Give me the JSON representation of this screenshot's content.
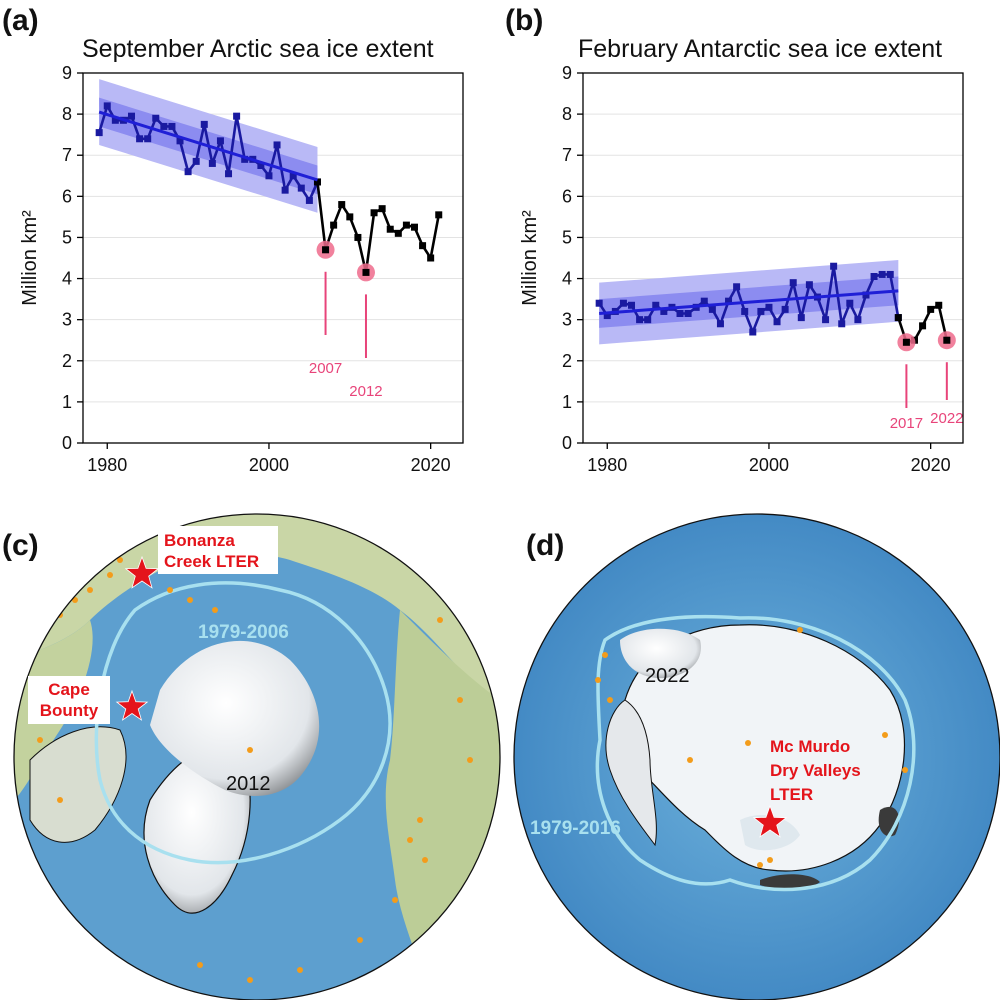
{
  "panels": {
    "a": {
      "letter": "(a)"
    },
    "b": {
      "letter": "(b)"
    },
    "c": {
      "letter": "(c)"
    },
    "d": {
      "letter": "(d)"
    }
  },
  "chart_data": [
    {
      "type": "line",
      "title": "September Arctic sea ice extent",
      "xlabel": "",
      "ylabel": "Million km²",
      "xlim": [
        1977,
        2024
      ],
      "ylim": [
        0,
        9
      ],
      "xticks": [
        1980,
        2000,
        2020
      ],
      "yticks": [
        0,
        1,
        2,
        3,
        4,
        5,
        6,
        7,
        8,
        9
      ],
      "grid": "horizontal",
      "series": [
        {
          "x": [
            1979,
            1980,
            1981,
            1982,
            1983,
            1984,
            1985,
            1986,
            1987,
            1988,
            1989,
            1990,
            1991,
            1992,
            1993,
            1994,
            1995,
            1996,
            1997,
            1998,
            1999,
            2000,
            2001,
            2002,
            2003,
            2004,
            2005,
            2006
          ],
          "values": [
            7.55,
            8.2,
            7.85,
            7.85,
            7.95,
            7.4,
            7.4,
            7.9,
            7.7,
            7.7,
            7.35,
            6.6,
            6.85,
            7.75,
            6.8,
            7.35,
            6.55,
            7.95,
            6.9,
            6.9,
            6.75,
            6.5,
            7.25,
            6.15,
            6.5,
            6.2,
            5.9,
            6.35
          ],
          "color": "#1a1aa0"
        },
        {
          "x": [
            2006,
            2007,
            2008,
            2009,
            2010,
            2011,
            2012,
            2013,
            2014,
            2015,
            2016,
            2017,
            2018,
            2019,
            2020,
            2021
          ],
          "values": [
            6.35,
            4.7,
            5.3,
            5.8,
            5.5,
            5.0,
            4.15,
            5.6,
            5.7,
            5.2,
            5.1,
            5.3,
            5.25,
            4.8,
            4.5,
            5.55
          ],
          "color": "#000000"
        }
      ],
      "trend": {
        "x": [
          1979,
          2006
        ],
        "values": [
          8.05,
          6.4
        ],
        "band_inner": 0.35,
        "band_outer": 0.8
      },
      "highlights": [
        {
          "x": 2007,
          "y": 4.7,
          "label": "2007"
        },
        {
          "x": 2012,
          "y": 4.15,
          "label": "2012"
        }
      ]
    },
    {
      "type": "line",
      "title": "February Antarctic sea ice extent",
      "xlabel": "",
      "ylabel": "Million km²",
      "xlim": [
        1977,
        2024
      ],
      "ylim": [
        0,
        9
      ],
      "xticks": [
        1980,
        2000,
        2020
      ],
      "yticks": [
        0,
        1,
        2,
        3,
        4,
        5,
        6,
        7,
        8,
        9
      ],
      "grid": "horizontal",
      "series": [
        {
          "x": [
            1979,
            1980,
            1981,
            1982,
            1983,
            1984,
            1985,
            1986,
            1987,
            1988,
            1989,
            1990,
            1991,
            1992,
            1993,
            1994,
            1995,
            1996,
            1997,
            1998,
            1999,
            2000,
            2001,
            2002,
            2003,
            2004,
            2005,
            2006,
            2007,
            2008,
            2009,
            2010,
            2011,
            2012,
            2013,
            2014,
            2015,
            2016
          ],
          "values": [
            3.4,
            3.1,
            3.2,
            3.4,
            3.35,
            3.0,
            3.0,
            3.35,
            3.2,
            3.3,
            3.15,
            3.15,
            3.3,
            3.45,
            3.25,
            2.9,
            3.45,
            3.8,
            3.2,
            2.7,
            3.2,
            3.3,
            2.95,
            3.25,
            3.9,
            3.05,
            3.85,
            3.55,
            3.0,
            4.3,
            2.9,
            3.4,
            3.0,
            3.6,
            4.05,
            4.1,
            4.1,
            3.05
          ],
          "color": "#1a1aa0"
        },
        {
          "x": [
            2016,
            2017,
            2018,
            2019,
            2020,
            2021,
            2022
          ],
          "values": [
            3.05,
            2.45,
            2.5,
            2.85,
            3.25,
            3.35,
            2.5
          ],
          "color": "#000000"
        }
      ],
      "trend": {
        "x": [
          1979,
          2016
        ],
        "values": [
          3.15,
          3.7
        ],
        "band_inner": 0.35,
        "band_outer": 0.75
      },
      "highlights": [
        {
          "x": 2017,
          "y": 2.45,
          "label": "2017"
        },
        {
          "x": 2022,
          "y": 2.5,
          "label": "2022"
        }
      ]
    }
  ],
  "map_c": {
    "period_label": "1979-2006",
    "year_label": "2012",
    "sites": [
      {
        "name_line1": "Bonanza",
        "name_line2": "Creek LTER"
      },
      {
        "name_line1": "Cape",
        "name_line2": "Bounty"
      }
    ]
  },
  "map_d": {
    "period_label": "1979-2016",
    "year_label": "2022",
    "sites": [
      {
        "name_line1": "Mc Murdo",
        "name_line2": "Dry Valleys",
        "name_line3": "LTER"
      }
    ]
  },
  "colors": {
    "trend": "#1f1fd6",
    "band_outer": "#b9b9f6",
    "band_inner": "#8c8cf0",
    "highlight": "#ef6b8c",
    "ocean": "#5d9fcf",
    "land": "#c9d6a6",
    "ice": "#f4f7fa",
    "median_extent": "#a8e0ef",
    "site_star": "#e4141b",
    "stations": "#f39c1b"
  }
}
